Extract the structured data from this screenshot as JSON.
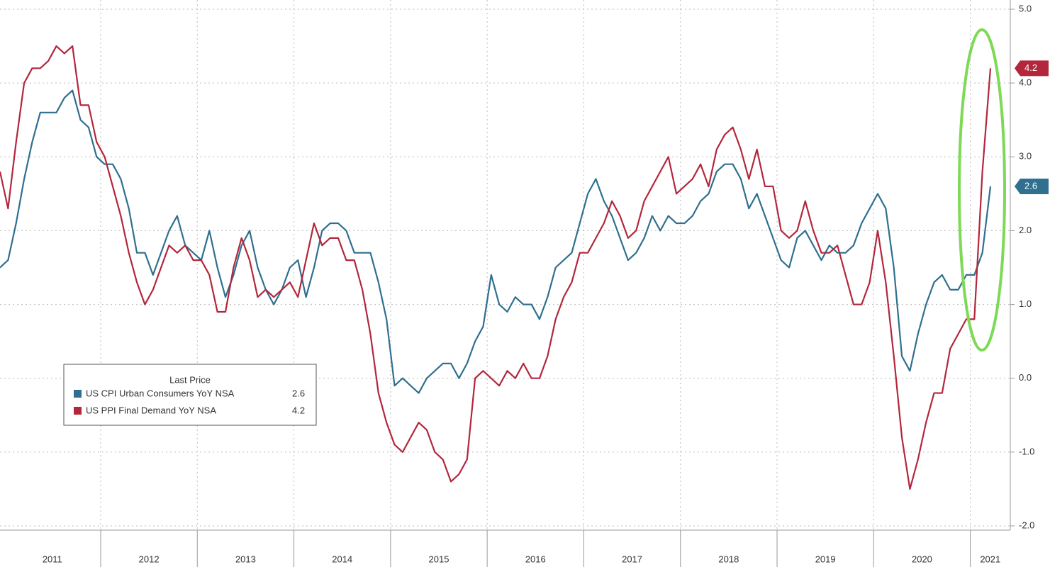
{
  "chart_data": {
    "type": "line",
    "legend_title": "Last Price",
    "categories": [
      null,
      "2011",
      null,
      null,
      null,
      null,
      null,
      null,
      null,
      null,
      null,
      null,
      null,
      "2012",
      null,
      null,
      null,
      null,
      null,
      null,
      null,
      null,
      null,
      null,
      null,
      "2013",
      null,
      null,
      null,
      null,
      null,
      null,
      null,
      null,
      null,
      null,
      null,
      "2014",
      null,
      null,
      null,
      null,
      null,
      null,
      null,
      null,
      null,
      null,
      null,
      "2015",
      null,
      null,
      null,
      null,
      null,
      null,
      null,
      null,
      null,
      null,
      null,
      "2016",
      null,
      null,
      null,
      null,
      null,
      null,
      null,
      null,
      null,
      null,
      null,
      "2017",
      null,
      null,
      null,
      null,
      null,
      null,
      null,
      null,
      null,
      null,
      null,
      "2018",
      null,
      null,
      null,
      null,
      null,
      null,
      null,
      null,
      null,
      null,
      null,
      "2019",
      null,
      null,
      null,
      null,
      null,
      null,
      null,
      null,
      null,
      null,
      null,
      "2020",
      null,
      null,
      null,
      null,
      null,
      null,
      null,
      null,
      null,
      null,
      null,
      "2021",
      null,
      null
    ],
    "series": [
      {
        "name": "US CPI Urban Consumers YoY NSA",
        "color": "#2f6f8f",
        "values": [
          1.5,
          1.6,
          2.1,
          2.7,
          3.2,
          3.6,
          3.6,
          3.6,
          3.8,
          3.9,
          3.5,
          3.4,
          3.0,
          2.9,
          2.9,
          2.7,
          2.3,
          1.7,
          1.7,
          1.4,
          1.7,
          2.0,
          2.2,
          1.8,
          1.7,
          1.6,
          2.0,
          1.5,
          1.1,
          1.4,
          1.8,
          2.0,
          1.5,
          1.2,
          1.0,
          1.2,
          1.5,
          1.6,
          1.1,
          1.5,
          2.0,
          2.1,
          2.1,
          2.0,
          1.7,
          1.7,
          1.7,
          1.3,
          0.8,
          -0.1,
          0.0,
          -0.1,
          -0.2,
          0.0,
          0.1,
          0.2,
          0.2,
          0.0,
          0.2,
          0.5,
          0.7,
          1.4,
          1.0,
          0.9,
          1.1,
          1.0,
          1.0,
          0.8,
          1.1,
          1.5,
          1.6,
          1.7,
          2.1,
          2.5,
          2.7,
          2.4,
          2.2,
          1.9,
          1.6,
          1.7,
          1.9,
          2.2,
          2.0,
          2.2,
          2.1,
          2.1,
          2.2,
          2.4,
          2.5,
          2.8,
          2.9,
          2.9,
          2.7,
          2.3,
          2.5,
          2.2,
          1.9,
          1.6,
          1.5,
          1.9,
          2.0,
          1.8,
          1.6,
          1.8,
          1.7,
          1.7,
          1.8,
          2.1,
          2.3,
          2.5,
          2.3,
          1.5,
          0.3,
          0.1,
          0.6,
          1.0,
          1.3,
          1.4,
          1.2,
          1.2,
          1.4,
          1.4,
          1.7,
          2.6
        ]
      },
      {
        "name": "US PPI Final Demand YoY NSA",
        "color": "#b3263c",
        "values": [
          2.8,
          2.3,
          3.2,
          4.0,
          4.2,
          4.2,
          4.3,
          4.5,
          4.4,
          4.5,
          3.7,
          3.7,
          3.2,
          3.0,
          2.6,
          2.2,
          1.7,
          1.3,
          1.0,
          1.2,
          1.5,
          1.8,
          1.7,
          1.8,
          1.6,
          1.6,
          1.4,
          0.9,
          0.9,
          1.5,
          1.9,
          1.6,
          1.1,
          1.2,
          1.1,
          1.2,
          1.3,
          1.1,
          1.6,
          2.1,
          1.8,
          1.9,
          1.9,
          1.6,
          1.6,
          1.2,
          0.6,
          -0.2,
          -0.6,
          -0.9,
          -1.0,
          -0.8,
          -0.6,
          -0.7,
          -1.0,
          -1.1,
          -1.4,
          -1.3,
          -1.1,
          0.0,
          0.1,
          0.0,
          -0.1,
          0.1,
          0.0,
          0.2,
          0.0,
          0.0,
          0.3,
          0.8,
          1.1,
          1.3,
          1.7,
          1.7,
          1.9,
          2.1,
          2.4,
          2.2,
          1.9,
          2.0,
          2.4,
          2.6,
          2.8,
          3.0,
          2.5,
          2.6,
          2.7,
          2.9,
          2.6,
          3.1,
          3.3,
          3.4,
          3.1,
          2.7,
          3.1,
          2.6,
          2.6,
          2.0,
          1.9,
          2.0,
          2.4,
          2.0,
          1.7,
          1.7,
          1.8,
          1.4,
          1.0,
          1.0,
          1.3,
          2.0,
          1.3,
          0.3,
          -0.8,
          -1.5,
          -1.1,
          -0.6,
          -0.2,
          -0.2,
          0.4,
          0.6,
          0.8,
          0.8,
          2.8,
          4.2
        ]
      }
    ],
    "ylim": [
      -2,
      5
    ],
    "yticks": [
      {
        "value": 5,
        "label": "5.0"
      },
      {
        "value": 4,
        "label": "4.0"
      },
      {
        "value": 3,
        "label": "3.0"
      },
      {
        "value": 2,
        "label": "2.0"
      },
      {
        "value": 1,
        "label": "1.0"
      },
      {
        "value": 0,
        "label": "0.0"
      },
      {
        "value": -1,
        "label": "-1.0"
      },
      {
        "value": -2,
        "label": "-2.0"
      }
    ],
    "grid": true
  }
}
